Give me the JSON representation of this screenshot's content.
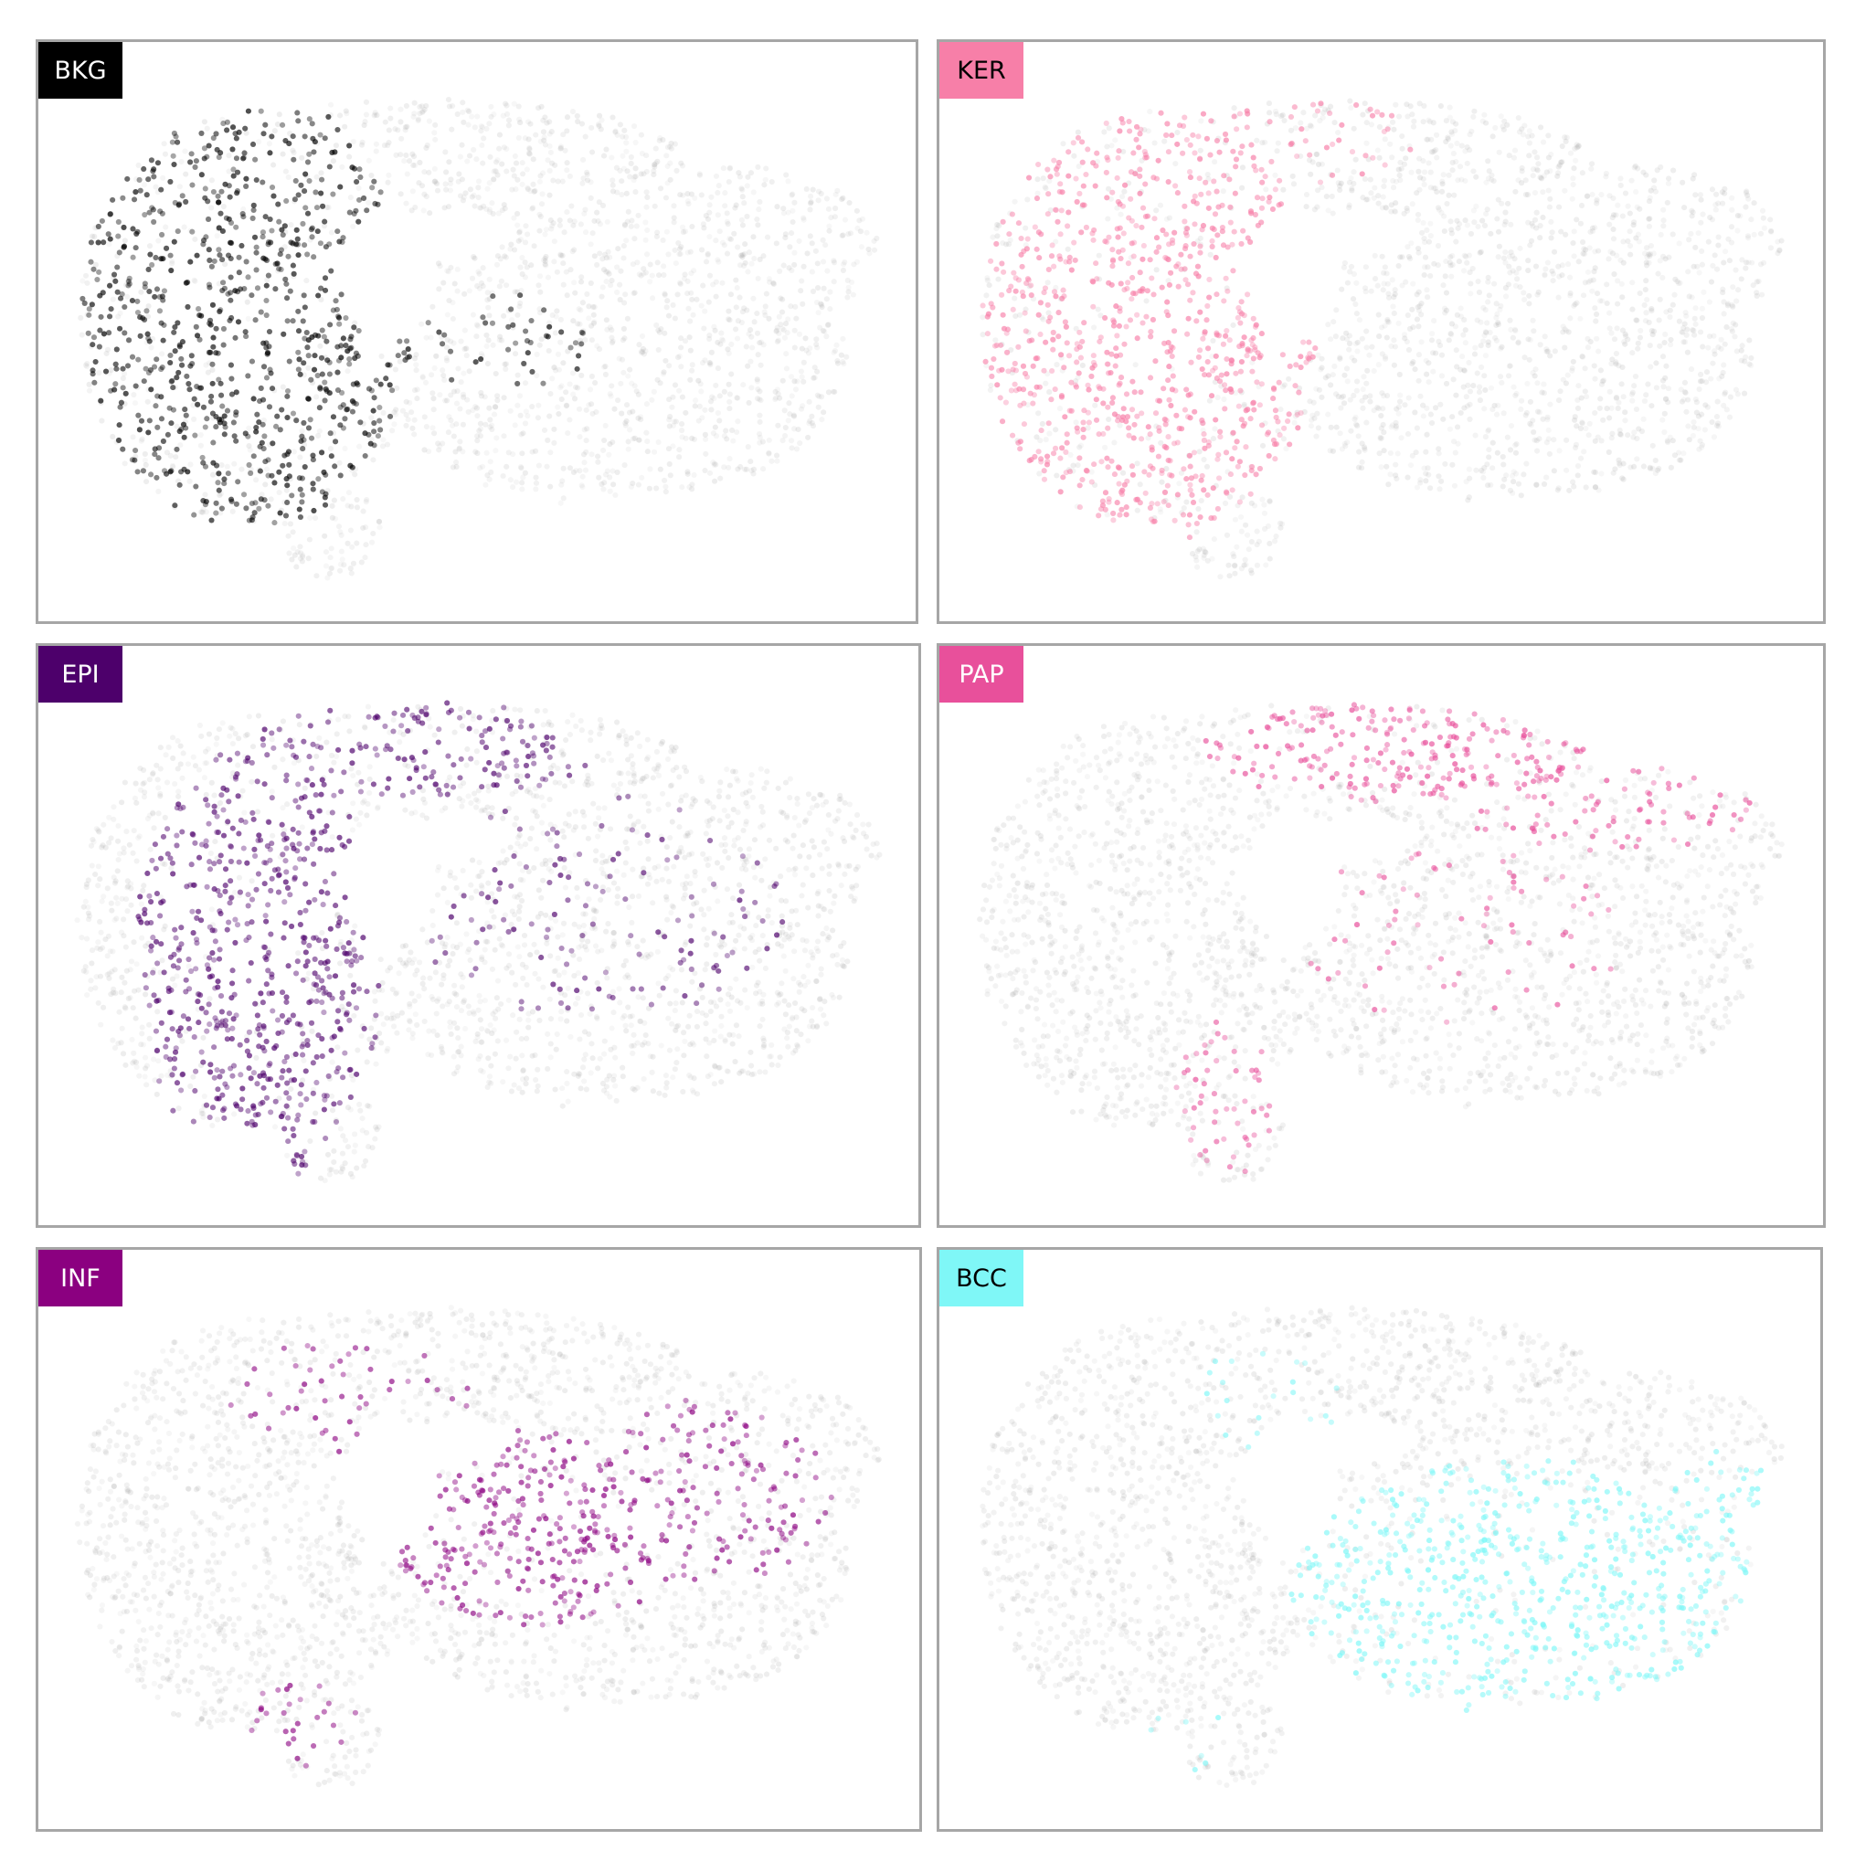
{
  "chart_data": {
    "type": "scatter",
    "layout": "3x2 small multiples of one embedding, each highlighting one cluster",
    "xlim": [
      0,
      100
    ],
    "ylim": [
      0,
      100
    ],
    "grid": false,
    "axes_visible": false,
    "background_point_color": "#9a9a9a",
    "panels": [
      {
        "label": "BKG",
        "color": "#000000",
        "label_text_color": "#ffffff",
        "highlight_regions": [
          {
            "cx": 24,
            "cy": 47,
            "rx": 19,
            "ry": 37,
            "weight": 1.0
          },
          {
            "cx": 53,
            "cy": 52,
            "rx": 10,
            "ry": 9,
            "weight": 0.35
          },
          {
            "cx": 33,
            "cy": 16,
            "rx": 7,
            "ry": 5,
            "weight": 0.15
          }
        ]
      },
      {
        "label": "KER",
        "color": "#f77fa8",
        "label_text_color": "#000000",
        "highlight_regions": [
          {
            "cx": 24,
            "cy": 48,
            "rx": 19,
            "ry": 39,
            "weight": 1.0
          },
          {
            "cx": 38,
            "cy": 17,
            "rx": 16,
            "ry": 8,
            "weight": 0.5
          }
        ]
      },
      {
        "label": "EPI",
        "color": "#4d006b",
        "label_text_color": "#ffffff",
        "highlight_regions": [
          {
            "cx": 25,
            "cy": 55,
            "rx": 14,
            "ry": 38,
            "weight": 1.0
          },
          {
            "cx": 43,
            "cy": 18,
            "rx": 20,
            "ry": 9,
            "weight": 0.75
          },
          {
            "cx": 63,
            "cy": 45,
            "rx": 22,
            "ry": 20,
            "weight": 0.25
          }
        ]
      },
      {
        "label": "PAP",
        "color": "#e8509b",
        "label_text_color": "#ffffff",
        "highlight_regions": [
          {
            "cx": 52,
            "cy": 18,
            "rx": 22,
            "ry": 9,
            "weight": 1.0
          },
          {
            "cx": 75,
            "cy": 28,
            "rx": 17,
            "ry": 8,
            "weight": 0.6
          },
          {
            "cx": 32,
            "cy": 78,
            "rx": 6,
            "ry": 14,
            "weight": 0.6
          },
          {
            "cx": 58,
            "cy": 50,
            "rx": 20,
            "ry": 15,
            "weight": 0.2
          }
        ]
      },
      {
        "label": "INF",
        "color": "#8b0080",
        "label_text_color": "#ffffff",
        "highlight_regions": [
          {
            "cx": 57,
            "cy": 48,
            "rx": 18,
            "ry": 17,
            "weight": 1.0
          },
          {
            "cx": 75,
            "cy": 42,
            "rx": 15,
            "ry": 16,
            "weight": 0.7
          },
          {
            "cx": 35,
            "cy": 25,
            "rx": 14,
            "ry": 10,
            "weight": 0.3
          },
          {
            "cx": 30,
            "cy": 82,
            "rx": 6,
            "ry": 8,
            "weight": 0.4
          }
        ]
      },
      {
        "label": "BCC",
        "color": "#7ff7f7",
        "label_text_color": "#000000",
        "highlight_regions": [
          {
            "cx": 66,
            "cy": 58,
            "rx": 26,
            "ry": 22,
            "weight": 1.0
          },
          {
            "cx": 89,
            "cy": 42,
            "rx": 6,
            "ry": 8,
            "weight": 0.8
          },
          {
            "cx": 38,
            "cy": 25,
            "rx": 8,
            "ry": 10,
            "weight": 0.3
          },
          {
            "cx": 28,
            "cy": 85,
            "rx": 6,
            "ry": 6,
            "weight": 0.3
          }
        ]
      }
    ]
  }
}
